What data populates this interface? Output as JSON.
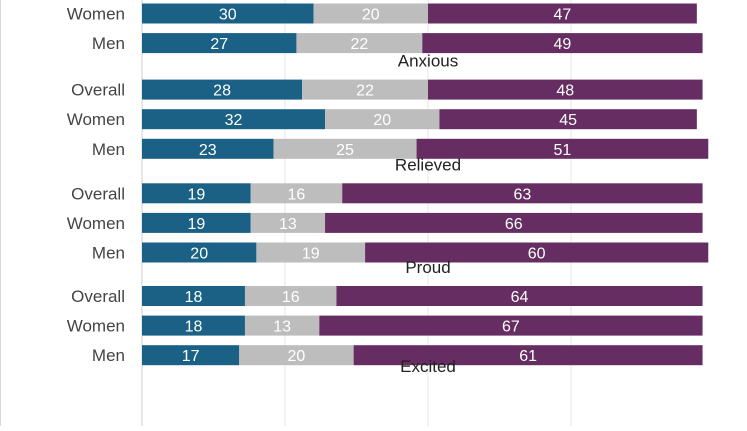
{
  "chart_data": {
    "type": "bar",
    "orientation": "horizontal",
    "stacked": true,
    "grid": true,
    "xlim": [
      0,
      100
    ],
    "colors": [
      "#1a6185",
      "#bdbdbd",
      "#662d62"
    ],
    "groups": [
      {
        "title": "",
        "categories": [
          "Women",
          "Men"
        ],
        "segments": [
          [
            30,
            20,
            47
          ],
          [
            27,
            22,
            49
          ]
        ]
      },
      {
        "title": "Anxious",
        "categories": [
          "Overall",
          "Women",
          "Men"
        ],
        "segments": [
          [
            28,
            22,
            48
          ],
          [
            32,
            20,
            45
          ],
          [
            23,
            25,
            51
          ]
        ]
      },
      {
        "title": "Relieved",
        "categories": [
          "Overall",
          "Women",
          "Men"
        ],
        "segments": [
          [
            19,
            16,
            63
          ],
          [
            19,
            13,
            66
          ],
          [
            20,
            19,
            60
          ]
        ]
      },
      {
        "title": "Proud",
        "categories": [
          "Overall",
          "Women",
          "Men"
        ],
        "segments": [
          [
            18,
            16,
            64
          ],
          [
            18,
            13,
            67
          ],
          [
            17,
            20,
            61
          ]
        ]
      },
      {
        "title": "Excited",
        "categories": [],
        "segments": []
      }
    ]
  }
}
